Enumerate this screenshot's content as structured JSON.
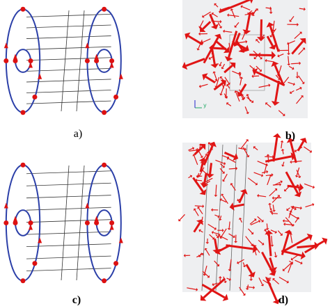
{
  "panels": [
    {
      "label": "a)"
    },
    {
      "label": "b)",
      "axis_label": "y"
    },
    {
      "label": "c)"
    },
    {
      "label": "d)"
    }
  ]
}
